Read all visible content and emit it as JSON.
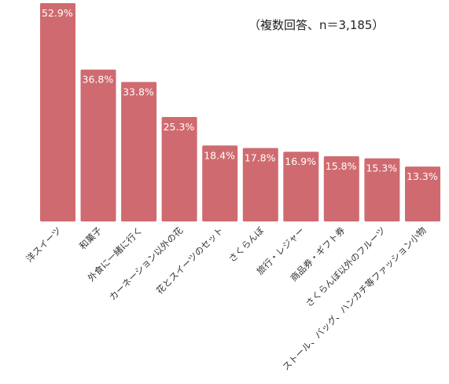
{
  "chart_data": {
    "type": "bar",
    "note": "（複数回答、n＝3,185）",
    "categories": [
      "洋スイーツ",
      "和菓子",
      "外食に一緒に行く",
      "カーネーション以外の花",
      "花とスイーツのセット",
      "さくらんぼ",
      "旅行・レジャー",
      "商品券・ギフト券",
      "さくらんぼ以外のフルーツ",
      "ストール、バッグ、ハンカチ等ファッション小物"
    ],
    "values": [
      52.9,
      36.8,
      33.8,
      25.3,
      18.4,
      17.8,
      16.9,
      15.8,
      15.3,
      13.3
    ],
    "value_labels": [
      "52.9%",
      "36.8%",
      "33.8%",
      "25.3%",
      "18.4%",
      "17.8%",
      "16.9%",
      "15.8%",
      "15.3%",
      "13.3%"
    ],
    "unit": "%",
    "ylim": [
      0,
      52.9
    ],
    "bar_color": "#cf6b70",
    "grid": false,
    "legend": "none"
  }
}
